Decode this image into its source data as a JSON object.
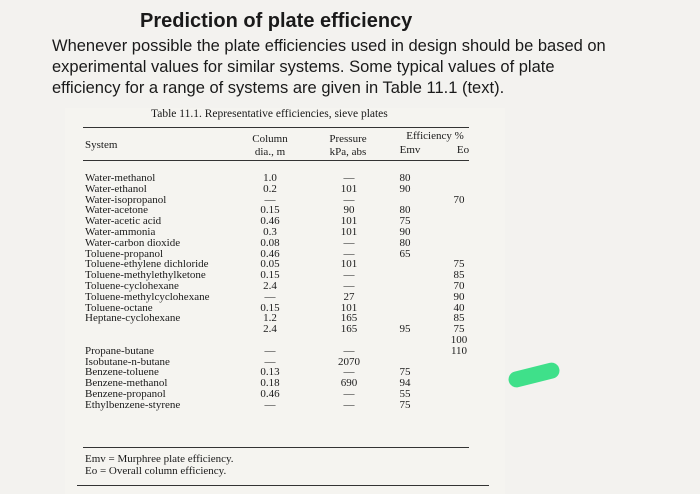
{
  "heading": "Prediction of plate efficiency",
  "intro_lines": [
    "Whenever possible the plate efficiencies used in design should be based on",
    "experimental values for similar systems. Some typical values of plate",
    "efficiency for a range of systems are given in Table 11.1 (text)."
  ],
  "table": {
    "caption": "Table 11.1.  Representative efficiencies, sieve plates",
    "headers": {
      "system": "System",
      "column_1": "Column",
      "column_2": "dia., m",
      "pressure_1": "Pressure",
      "pressure_2": "kPa, abs",
      "efficiency": "Efficiency %",
      "emv": "Emv",
      "eo": "Eo"
    },
    "systems": [
      "Water-methanol",
      "Water-ethanol",
      "Water-isopropanol",
      "Water-acetone",
      "Water-acetic acid",
      "Water-ammonia",
      "Water-carbon dioxide",
      "Toluene-propanol",
      "Toluene-ethylene dichloride",
      "Toluene-methylethylketone",
      "Toluene-cyclohexane",
      "Toluene-methylcyclohexane",
      "Toluene-octane",
      "Heptane-cyclohexane",
      "",
      "",
      "Propane-butane",
      "Isobutane-n-butane",
      "Benzene-toluene",
      "Benzene-methanol",
      "Benzene-propanol",
      "Ethylbenzene-styrene"
    ],
    "diameters": [
      "1.0",
      "0.2",
      "—",
      "0.15",
      "0.46",
      "0.3",
      "0.08",
      "0.46",
      "0.05",
      "0.15",
      "2.4",
      "—",
      "0.15",
      "1.2",
      "2.4",
      "",
      "—",
      "—",
      "0.13",
      "0.18",
      "0.46",
      "—"
    ],
    "pressures": [
      "—",
      "101",
      "—",
      "90",
      "101",
      "101",
      "—",
      "—",
      "101",
      "—",
      "—",
      "27",
      "101",
      "165",
      "165",
      "",
      "—",
      "2070",
      "—",
      "690",
      "—",
      "—"
    ],
    "emv": [
      "80",
      "90",
      "",
      "80",
      "75",
      "90",
      "80",
      "65",
      "",
      "",
      "",
      "",
      "",
      "",
      "95",
      "",
      "",
      "",
      "75",
      "94",
      "55",
      "75"
    ],
    "eo": [
      "",
      "",
      "70",
      "",
      "",
      "",
      "",
      "",
      "75",
      "85",
      "70",
      "90",
      "40",
      "85",
      "75",
      "100",
      "110",
      "",
      "",
      "",
      "",
      ""
    ],
    "footnotes": [
      "Emv = Murphree plate efficiency.",
      "Eo = Overall column efficiency."
    ]
  },
  "highlight_color": "#3fe08a"
}
